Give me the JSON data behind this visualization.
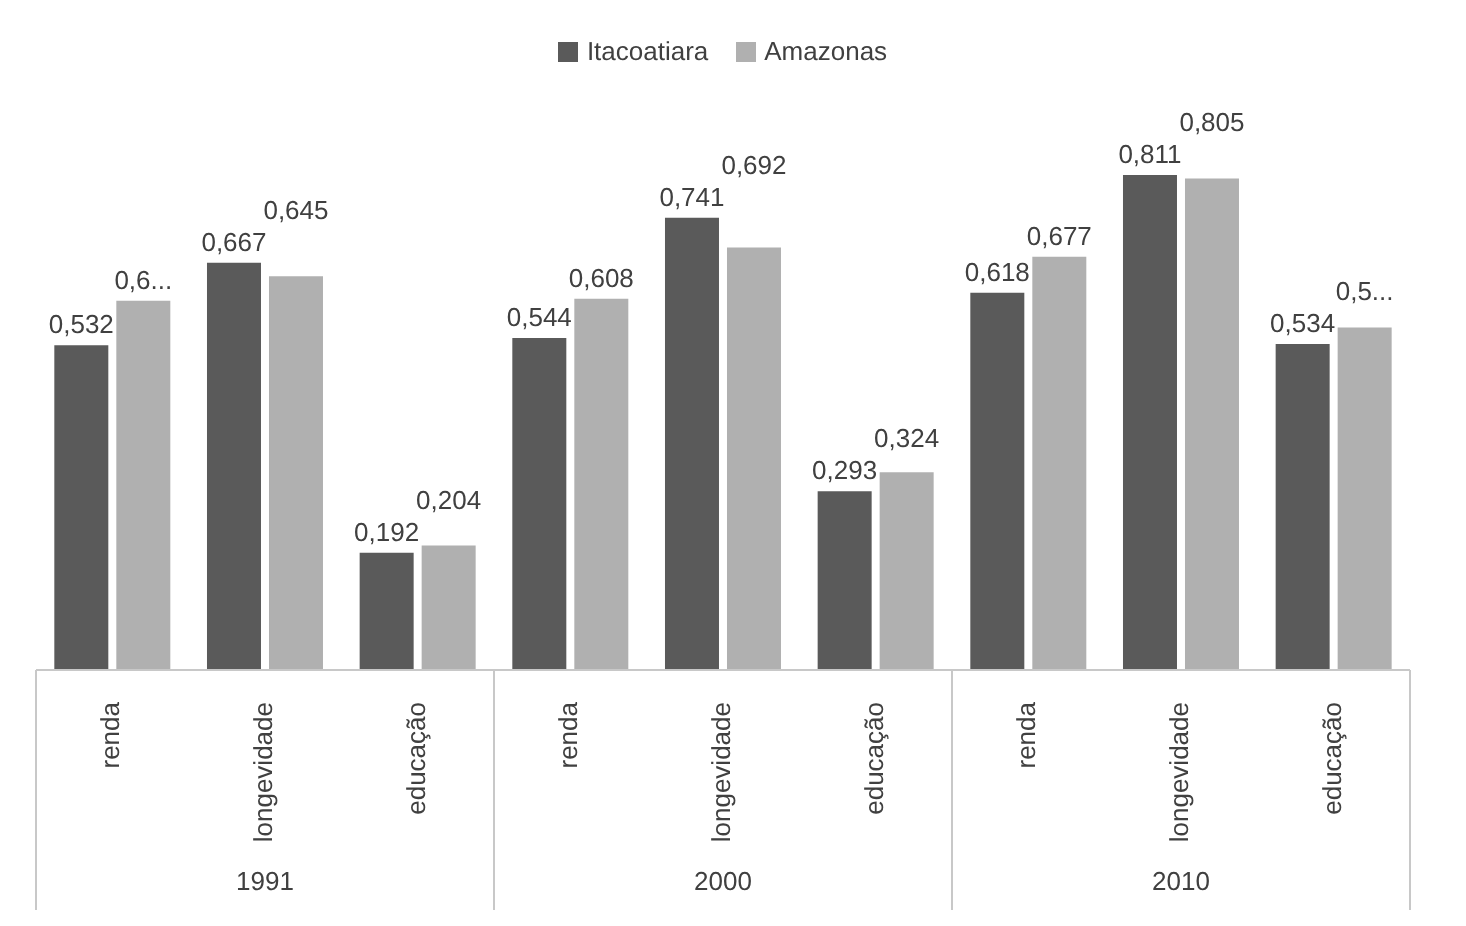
{
  "chart_data": {
    "type": "bar",
    "categories": [
      "renda",
      "longevidade",
      "educação",
      "renda",
      "longevidade",
      "educação",
      "renda",
      "longevidade",
      "educação"
    ],
    "series": [
      {
        "name": "Itacoatiara",
        "color": "#5a5a5a",
        "values": [
          0.532,
          0.667,
          0.192,
          0.544,
          0.741,
          0.293,
          0.618,
          0.811,
          0.534
        ],
        "value_labels": [
          "0,532",
          "0,667",
          "0,192",
          "0,544",
          "0,741",
          "0,293",
          "0,618",
          "0,811",
          "0,534"
        ]
      },
      {
        "name": "Amazonas",
        "color": "#b0b0b0",
        "values": [
          0.605,
          0.645,
          0.204,
          0.608,
          0.692,
          0.324,
          0.677,
          0.805,
          0.561
        ],
        "value_labels": [
          "0,6...",
          "0,645",
          "0,204",
          "0,608",
          "0,692",
          "0,324",
          "0,677",
          "0,805",
          "0,5..."
        ]
      }
    ],
    "annotations": [
      "1991",
      "2000",
      "2010"
    ],
    "legend": "top"
  }
}
